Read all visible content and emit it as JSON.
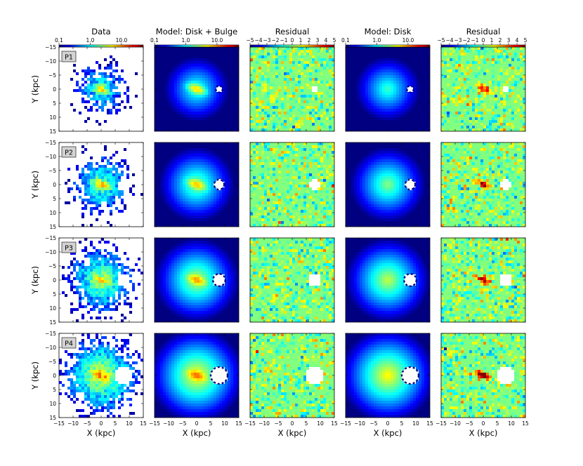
{
  "figure": {
    "rows": [
      "P1",
      "P2",
      "P3",
      "P4"
    ],
    "ylabel": "Y (kpc)",
    "xlabel": "X (kpc)",
    "xticks": [
      "−15",
      "−10",
      "−5",
      "0",
      "5",
      "10",
      "15"
    ],
    "yticks": [
      "−15",
      "−10",
      "−5",
      "0",
      "5",
      "10",
      "15"
    ]
  },
  "panels": [
    {
      "id": "data",
      "title": "Data",
      "kind": "data",
      "cbar_scale": "log",
      "cbar_ticks": [
        "0.1",
        "1.0",
        "10.0"
      ]
    },
    {
      "id": "model_db",
      "title": "Model: Disk + Bulge",
      "kind": "model_bulge",
      "cbar_scale": "log",
      "cbar_ticks": [
        "0.1",
        "1.0",
        "10.0"
      ]
    },
    {
      "id": "resid_db",
      "title": "Residual",
      "kind": "residual",
      "cbar_scale": "linear",
      "cbar_ticks": [
        "−5",
        "−4",
        "−3",
        "−2",
        "−1",
        "0",
        "1",
        "2",
        "3",
        "4",
        "5"
      ]
    },
    {
      "id": "model_d",
      "title": "Model: Disk",
      "kind": "model_disk",
      "cbar_scale": "log",
      "cbar_ticks": [
        "0.1",
        "1.0",
        "10.0"
      ]
    },
    {
      "id": "resid_d",
      "title": "Residual",
      "kind": "residual_disk",
      "cbar_scale": "linear",
      "cbar_ticks": [
        "−5",
        "−4",
        "−3",
        "−2",
        "−1",
        "0",
        "1",
        "2",
        "3",
        "4",
        "5"
      ]
    }
  ],
  "chart_data": {
    "type": "heatmap",
    "grid": "5 columns x 4 rows of 2D star-count density maps",
    "x_range_kpc": [
      -15,
      15
    ],
    "y_range_kpc": [
      -15,
      15
    ],
    "y_axis_inverted": true,
    "density_colorbar_range": [
      0.1,
      50
    ],
    "residual_colorbar_range": [
      -5,
      5
    ],
    "masked_region_center_kpc": [
      8,
      0
    ],
    "masked_region_radius_kpc_by_row": [
      1.2,
      1.8,
      2.2,
      3.0
    ],
    "colormap": "jet"
  }
}
